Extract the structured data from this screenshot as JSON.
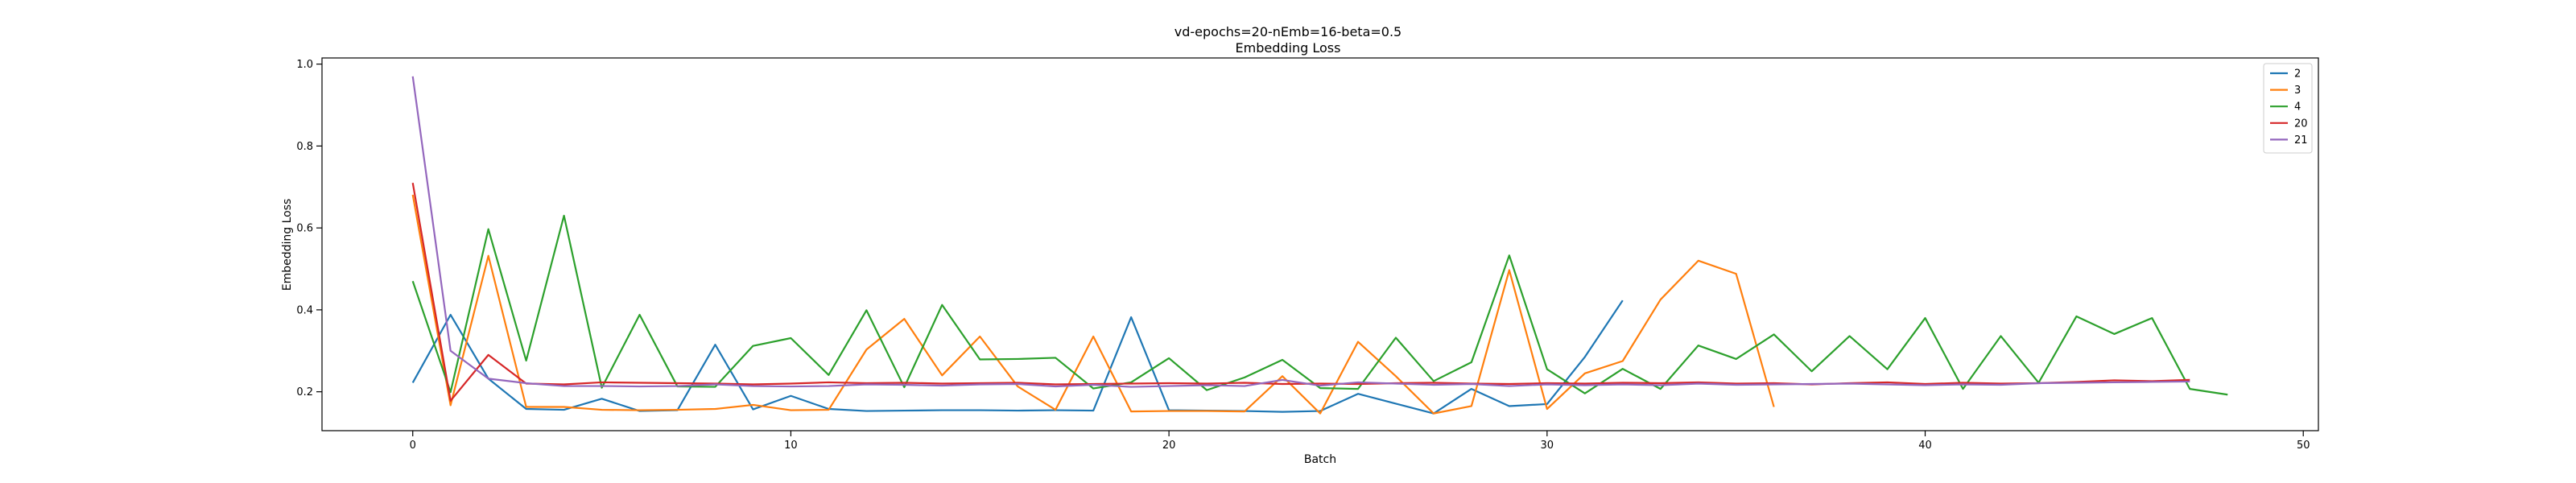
{
  "chart_data": {
    "type": "line",
    "title": "vd-epochs=20-nEmb=16-beta=0.5",
    "subtitle": "Embedding Loss",
    "xlabel": "Batch",
    "ylabel": "Embedding Loss",
    "xlim": [
      -2.4,
      50.4
    ],
    "ylim": [
      0.105,
      1.015
    ],
    "xticks": [
      0,
      10,
      20,
      30,
      40,
      50
    ],
    "yticks": [
      0.2,
      0.4,
      0.6,
      0.8,
      1.0
    ],
    "ytick_labels": [
      "0.2",
      "0.4",
      "0.6",
      "0.8",
      "1.0"
    ],
    "grid": false,
    "legend_position": "top-right",
    "series": [
      {
        "name": "2",
        "color": "#1f77b4",
        "y": [
          0.222,
          0.388,
          0.232,
          0.158,
          0.156,
          0.183,
          0.153,
          0.155,
          0.315,
          0.157,
          0.19,
          0.158,
          0.153,
          0.154,
          0.155,
          0.155,
          0.154,
          0.155,
          0.154,
          0.382,
          0.155,
          0.154,
          0.153,
          0.151,
          0.153,
          0.195,
          0.171,
          0.147,
          0.207,
          0.165,
          0.17,
          0.285,
          0.423
        ]
      },
      {
        "name": "3",
        "color": "#ff7f0e",
        "y": [
          0.681,
          0.167,
          0.532,
          0.163,
          0.163,
          0.156,
          0.155,
          0.156,
          0.158,
          0.168,
          0.155,
          0.156,
          0.303,
          0.378,
          0.24,
          0.335,
          0.213,
          0.156,
          0.335,
          0.152,
          0.153,
          0.153,
          0.152,
          0.238,
          0.147,
          0.322,
          0.238,
          0.147,
          0.165,
          0.497,
          0.158,
          0.245,
          0.275,
          0.425,
          0.52,
          0.488,
          0.163
        ]
      },
      {
        "name": "4",
        "color": "#2ca02c",
        "y": [
          0.47,
          0.199,
          0.597,
          0.276,
          0.63,
          0.21,
          0.388,
          0.213,
          0.212,
          0.312,
          0.331,
          0.241,
          0.399,
          0.211,
          0.412,
          0.279,
          0.28,
          0.283,
          0.208,
          0.223,
          0.282,
          0.204,
          0.235,
          0.278,
          0.209,
          0.207,
          0.332,
          0.226,
          0.272,
          0.533,
          0.255,
          0.196,
          0.256,
          0.207,
          0.313,
          0.28,
          0.34,
          0.25,
          0.336,
          0.255,
          0.38,
          0.207,
          0.336,
          0.222,
          0.384,
          0.341,
          0.38,
          0.207,
          0.193
        ]
      },
      {
        "name": "20",
        "color": "#d62728",
        "y": [
          0.71,
          0.178,
          0.29,
          0.22,
          0.218,
          0.223,
          0.222,
          0.221,
          0.22,
          0.218,
          0.22,
          0.223,
          0.221,
          0.222,
          0.22,
          0.221,
          0.222,
          0.218,
          0.219,
          0.22,
          0.221,
          0.22,
          0.222,
          0.219,
          0.22,
          0.219,
          0.221,
          0.222,
          0.22,
          0.219,
          0.221,
          0.22,
          0.222,
          0.221,
          0.223,
          0.22,
          0.221,
          0.218,
          0.221,
          0.223,
          0.219,
          0.222,
          0.22,
          0.221,
          0.224,
          0.228,
          0.226,
          0.229
        ]
      },
      {
        "name": "21",
        "color": "#9467bd",
        "y": [
          0.97,
          0.3,
          0.232,
          0.221,
          0.214,
          0.214,
          0.213,
          0.214,
          0.218,
          0.214,
          0.213,
          0.214,
          0.218,
          0.217,
          0.215,
          0.218,
          0.219,
          0.213,
          0.217,
          0.212,
          0.214,
          0.216,
          0.214,
          0.229,
          0.215,
          0.223,
          0.22,
          0.217,
          0.219,
          0.214,
          0.218,
          0.216,
          0.218,
          0.216,
          0.22,
          0.217,
          0.218,
          0.219,
          0.22,
          0.218,
          0.216,
          0.218,
          0.217,
          0.221,
          0.222,
          0.223,
          0.224,
          0.225
        ]
      }
    ]
  }
}
